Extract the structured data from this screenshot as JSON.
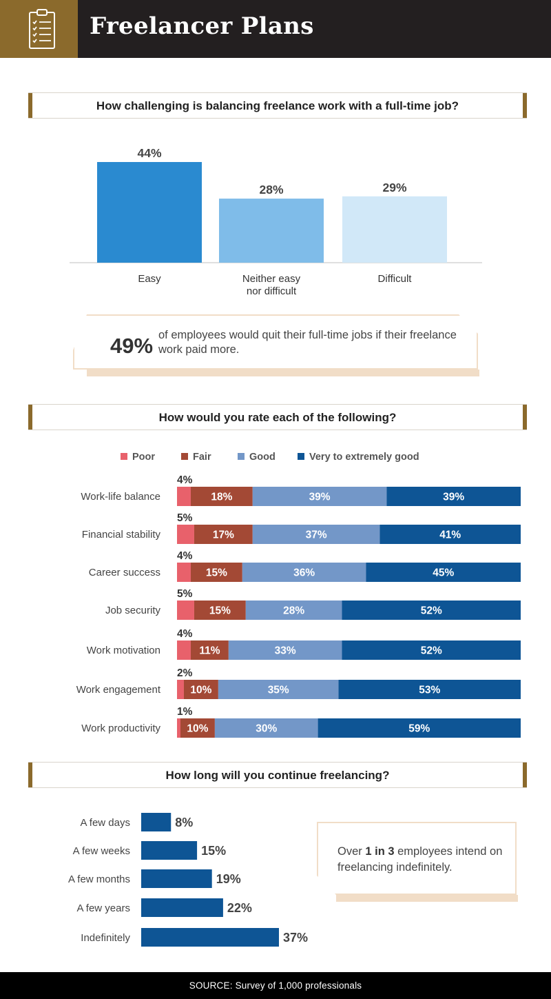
{
  "header": {
    "title": "Freelancer Plans",
    "icon": "clipboard-checklist-icon",
    "background_color": "#231f20",
    "icon_box_color": "#8b6a2c"
  },
  "sections": {
    "balance_title": "How challenging is balancing freelance work with a full-time job?",
    "ratings_title": "How would you rate each of the following?",
    "continue_title": "How long will you continue freelancing?"
  },
  "callout1": {
    "big": "49%",
    "text": "of employees would quit their full-time jobs if their freelance work paid more."
  },
  "callout2": {
    "pre": "Over ",
    "bold": "1 in 3",
    "post": " employees intend on freelancing indefinitely."
  },
  "footer": {
    "text": "SOURCE: Survey of 1,000 professionals"
  },
  "colors": {
    "accent": "#8b6a2c",
    "poor": "#e8616b",
    "fair": "#a34935",
    "good": "#7397c8",
    "very_good": "#0e5595",
    "easy": "#2a8ad0",
    "neither": "#7fbce9",
    "difficult": "#d1e8f8",
    "continue_bar": "#0e5595"
  },
  "chart_data": [
    {
      "type": "bar",
      "title": "How challenging is balancing freelance work with a full-time job?",
      "categories": [
        "Easy",
        "Neither easy nor difficult",
        "Difficult"
      ],
      "category_lines": [
        [
          "Easy"
        ],
        [
          "Neither easy",
          "nor difficult"
        ],
        [
          "Difficult"
        ]
      ],
      "values": [
        44,
        28,
        29
      ],
      "labels": [
        "44%",
        "28%",
        "29%"
      ],
      "unit": "%",
      "ylim": [
        0,
        44
      ]
    },
    {
      "type": "bar",
      "orientation": "horizontal",
      "stacked": true,
      "title": "How would you rate each of the following?",
      "legend_position": "top",
      "categories": [
        "Work-life balance",
        "Financial stability",
        "Career success",
        "Job security",
        "Work motivation",
        "Work engagement",
        "Work productivity"
      ],
      "series": [
        {
          "name": "Poor",
          "values": [
            4,
            5,
            4,
            5,
            4,
            2,
            1
          ]
        },
        {
          "name": "Fair",
          "values": [
            18,
            17,
            15,
            15,
            11,
            10,
            10
          ]
        },
        {
          "name": "Good",
          "values": [
            39,
            37,
            36,
            28,
            33,
            35,
            30
          ]
        },
        {
          "name": "Very to extremely good",
          "values": [
            39,
            41,
            45,
            52,
            52,
            53,
            59
          ]
        }
      ],
      "unit": "%"
    },
    {
      "type": "bar",
      "orientation": "horizontal",
      "title": "How long will you continue freelancing?",
      "categories": [
        "A few days",
        "A few weeks",
        "A few months",
        "A few years",
        "Indefinitely"
      ],
      "values": [
        8,
        15,
        19,
        22,
        37
      ],
      "labels": [
        "8%",
        "15%",
        "19%",
        "22%",
        "37%"
      ],
      "unit": "%"
    }
  ]
}
